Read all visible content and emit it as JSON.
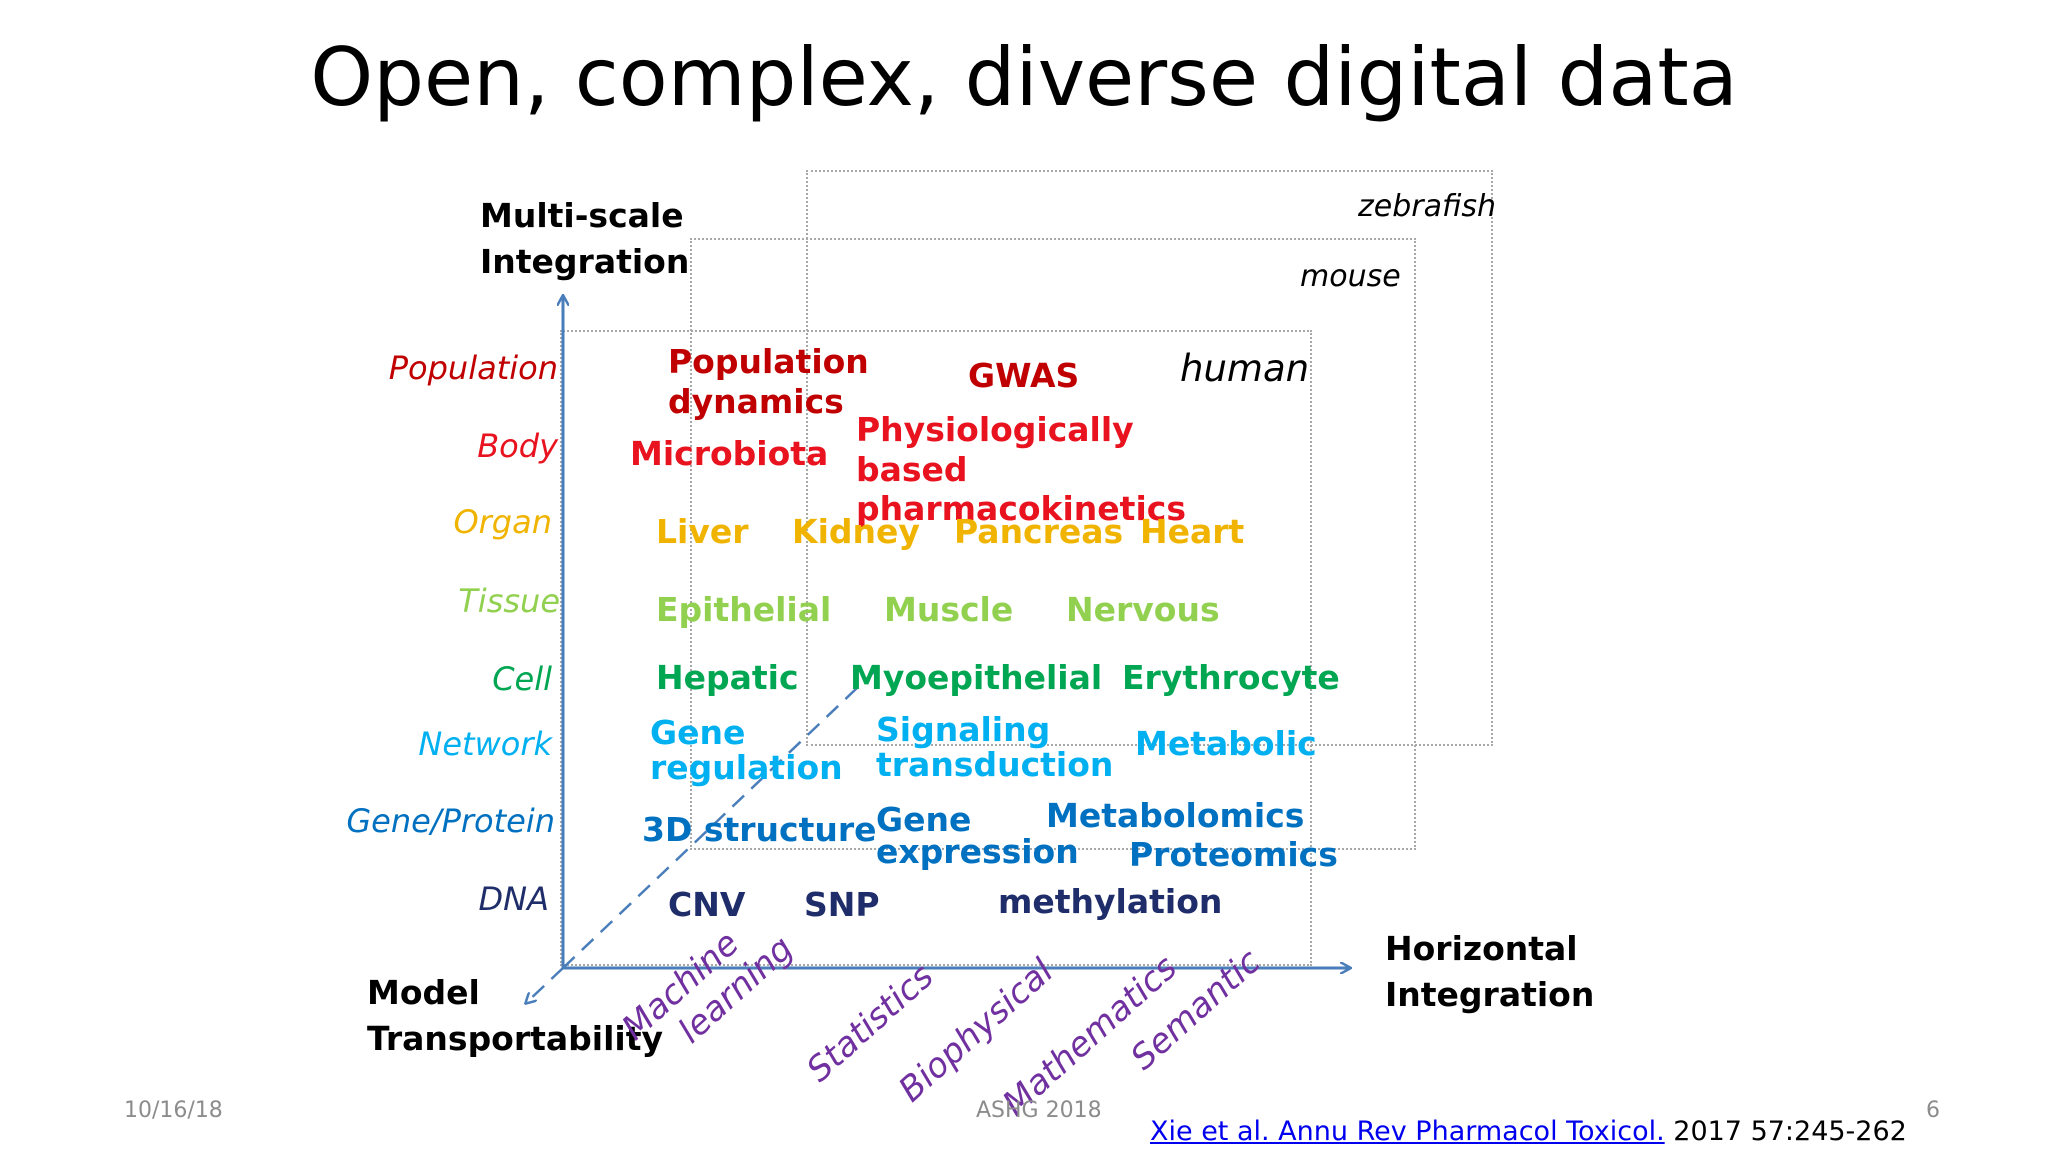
{
  "title": "Open, complex, diverse digital data",
  "axes": {
    "vertical": [
      "Multi-scale",
      "Integration"
    ],
    "horizontal": [
      "Horizontal",
      "Integration"
    ],
    "diagonal": [
      "Model",
      "Transportability"
    ]
  },
  "species": [
    "zebrafish",
    "mouse",
    "human"
  ],
  "scales": [
    {
      "label": "Population",
      "color": "#c00000"
    },
    {
      "label": "Body",
      "color": "#e8131f"
    },
    {
      "label": "Organ",
      "color": "#f0b400"
    },
    {
      "label": "Tissue",
      "color": "#92d050"
    },
    {
      "label": "Cell",
      "color": "#00a651"
    },
    {
      "label": "Network",
      "color": "#00b0f0"
    },
    {
      "label": "Gene/Protein",
      "color": "#0070c0"
    },
    {
      "label": "DNA",
      "color": "#1f2d6a"
    }
  ],
  "items": {
    "population": [
      "Population dynamics",
      "GWAS"
    ],
    "body": [
      "Microbiota",
      "Physiologically based pharmacokinetics"
    ],
    "organ": [
      "Liver",
      "Kidney",
      "Pancreas",
      "Heart"
    ],
    "tissue": [
      "Epithelial",
      "Muscle",
      "Nervous"
    ],
    "cell": [
      "Hepatic",
      "Myoepithelial",
      "Erythrocyte"
    ],
    "network": [
      "Gene regulation",
      "Signaling transduction",
      "Metabolic"
    ],
    "gene_protein": [
      "3D structure",
      "Gene expression",
      "Metabolomics",
      "Proteomics"
    ],
    "dna": [
      "CNV",
      "SNP",
      "methylation"
    ]
  },
  "methods": [
    "Machine learning",
    "Statistics",
    "Biophysical",
    "Mathematics",
    "Semantic"
  ],
  "footer": {
    "date": "10/16/18",
    "event": "ASHG 2018",
    "page": "6",
    "citation_link": "Xie et al. Annu Rev Pharmacol Toxicol.",
    "citation_rest": " 2017 57:245-262"
  },
  "colors": {
    "axis": "#4a7ebb",
    "box_border": "#a8a8a8",
    "method": "#7030a0"
  }
}
